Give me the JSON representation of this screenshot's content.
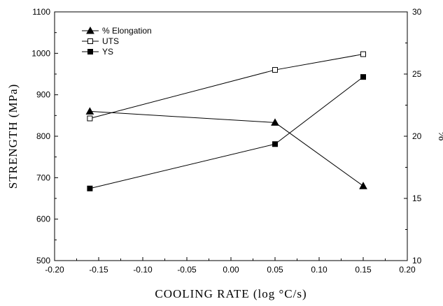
{
  "chart_data": {
    "type": "line",
    "title": "",
    "xlabel": "COOLING RATE  (log  °C/s)",
    "ylabel": "STRENGTH  (MPa)",
    "y2label": "%",
    "xlim": [
      -0.2,
      0.2
    ],
    "ylim": [
      500,
      1100
    ],
    "y2lim": [
      10,
      30
    ],
    "x_ticks": [
      "-0.20",
      "-0.15",
      "-0.10",
      "-0.05",
      "0.00",
      "0.05",
      "0.10",
      "0.15",
      "0.20"
    ],
    "y_ticks": [
      "500",
      "600",
      "700",
      "800",
      "900",
      "1000",
      "1100"
    ],
    "y2_ticks": [
      "10",
      "15",
      "20",
      "25",
      "30"
    ],
    "grid": false,
    "legend_position": "top-left",
    "series": [
      {
        "name": "% Elongation",
        "axis": "right",
        "marker": "filled-triangle",
        "x": [
          -0.16,
          0.05,
          0.15
        ],
        "values": [
          22.0,
          21.1,
          16.0
        ]
      },
      {
        "name": "UTS",
        "axis": "left",
        "marker": "open-square",
        "x": [
          -0.16,
          0.05,
          0.15
        ],
        "values": [
          843,
          960,
          998
        ]
      },
      {
        "name": "YS",
        "axis": "left",
        "marker": "filled-square",
        "x": [
          -0.16,
          0.05,
          0.15
        ],
        "values": [
          674,
          781,
          943
        ]
      }
    ]
  }
}
